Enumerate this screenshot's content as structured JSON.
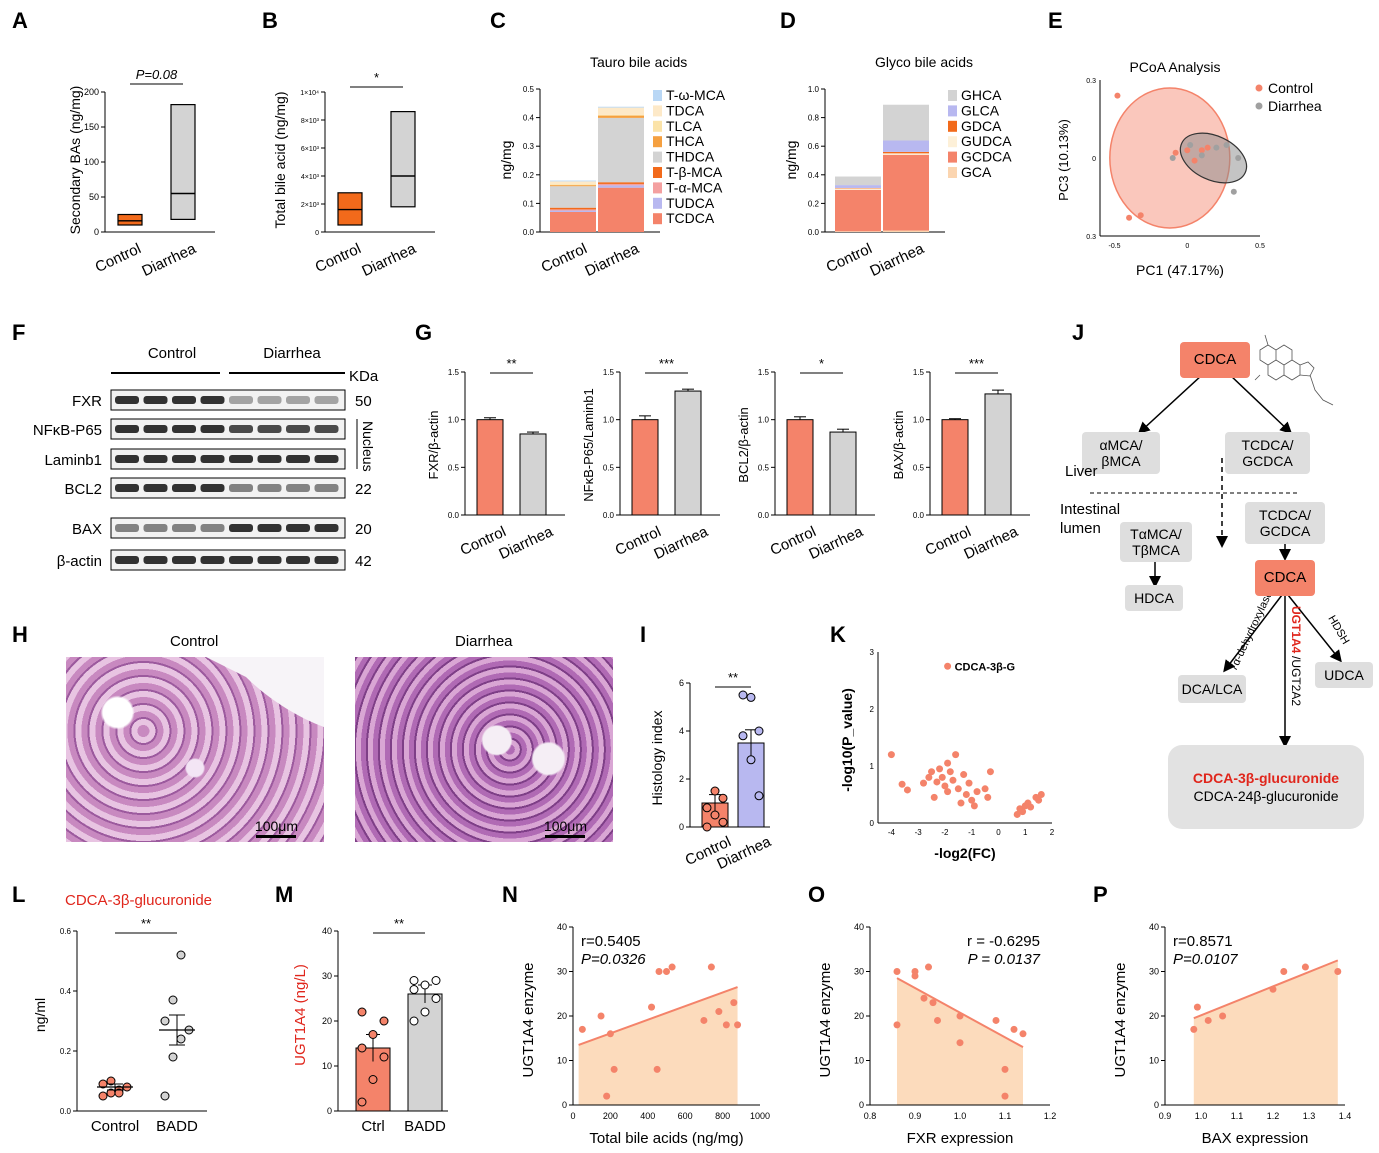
{
  "labels": {
    "A": "A",
    "B": "B",
    "C": "C",
    "D": "D",
    "E": "E",
    "F": "F",
    "G": "G",
    "H": "H",
    "I": "I",
    "J": "J",
    "K": "K",
    "L": "L",
    "M": "M",
    "N": "N",
    "O": "O",
    "P": "P"
  },
  "colors": {
    "salmon": "#f4836a",
    "orange": "#f26a1b",
    "gray": "#d3d3d3",
    "lavender": "#b8b8f0",
    "peach": "#fbd5b0",
    "red": "#e0261c"
  },
  "panelA": {
    "ylabel": "Secondary BAs (ng/mg)",
    "yticks": [
      "0",
      "50",
      "100",
      "150",
      "200"
    ],
    "categories": [
      "Control",
      "Diarrhea"
    ],
    "sig": "P=0.08",
    "chart_data": {
      "type": "box",
      "series": [
        {
          "name": "Control",
          "min": 10,
          "median": 16,
          "max": 25
        },
        {
          "name": "Diarrhea",
          "min": 18,
          "median": 55,
          "max": 182
        }
      ],
      "ylim": [
        0,
        200
      ]
    }
  },
  "panelB": {
    "ylabel": "Total bile acid (ng/mg)",
    "yticks": [
      "0",
      "2×10³",
      "4×10³",
      "6×10³",
      "8×10³",
      "1×10⁴"
    ],
    "categories": [
      "Control",
      "Diarrhea"
    ],
    "sig": "*",
    "chart_data": {
      "type": "box",
      "series": [
        {
          "name": "Control",
          "min": 500,
          "median": 1600,
          "max": 2800
        },
        {
          "name": "Diarrhea",
          "min": 1800,
          "median": 4000,
          "max": 8600
        }
      ],
      "ylim": [
        0,
        10000
      ]
    }
  },
  "panelC": {
    "title": "Tauro bile acids",
    "ylabel": "ng/mg",
    "yticks": [
      "0.0",
      "0.1",
      "0.2",
      "0.3",
      "0.4",
      "0.5"
    ],
    "categories": [
      "Control",
      "Diarrhea"
    ],
    "legend": [
      "T-ω-MCA",
      "TDCA",
      "TLCA",
      "THCA",
      "THDCA",
      "T-β-MCA",
      "T-α-MCA",
      "TUDCA",
      "TCDCA"
    ],
    "chart_data": {
      "type": "bar",
      "stacked": true,
      "categories": [
        "Control",
        "Diarrhea"
      ],
      "series": [
        {
          "name": "TCDCA",
          "values": [
            0.07,
            0.155
          ],
          "color": "#f4836a"
        },
        {
          "name": "TUDCA",
          "values": [
            0.005,
            0.008
          ],
          "color": "#b8b8f0"
        },
        {
          "name": "T-α-MCA",
          "values": [
            0.004,
            0.005
          ],
          "color": "#f4a0a0"
        },
        {
          "name": "T-β-MCA",
          "values": [
            0.006,
            0.006
          ],
          "color": "#f26a1b"
        },
        {
          "name": "THDCA",
          "values": [
            0.075,
            0.225
          ],
          "color": "#d3d3d3"
        },
        {
          "name": "THCA",
          "values": [
            0.004,
            0.008
          ],
          "color": "#f5a040"
        },
        {
          "name": "TLCA",
          "values": [
            0.003,
            0.003
          ],
          "color": "#fbe3a8"
        },
        {
          "name": "TDCA",
          "values": [
            0.01,
            0.025
          ],
          "color": "#fde9c8"
        },
        {
          "name": "T-ω-MCA",
          "values": [
            0.003,
            0.003
          ],
          "color": "#b9d7f5"
        }
      ],
      "ylim": [
        0,
        0.5
      ]
    }
  },
  "panelD": {
    "title": "Glyco bile acids",
    "ylabel": "ng/mg",
    "yticks": [
      "0.0",
      "0.2",
      "0.4",
      "0.6",
      "0.8",
      "1.0"
    ],
    "categories": [
      "Control",
      "Diarrhea"
    ],
    "legend": [
      "GHCA",
      "GLCA",
      "GDCA",
      "GUDCA",
      "GCDCA",
      "GCA"
    ],
    "chart_data": {
      "type": "bar",
      "stacked": true,
      "categories": [
        "Control",
        "Diarrhea"
      ],
      "series": [
        {
          "name": "GCA",
          "values": [
            0.005,
            0.01
          ],
          "color": "#fbd5b0"
        },
        {
          "name": "GCDCA",
          "values": [
            0.29,
            0.53
          ],
          "color": "#f4836a"
        },
        {
          "name": "GUDCA",
          "values": [
            0.01,
            0.01
          ],
          "color": "#fdf0d8"
        },
        {
          "name": "GDCA",
          "values": [
            0.003,
            0.01
          ],
          "color": "#f26a1b"
        },
        {
          "name": "GLCA",
          "values": [
            0.02,
            0.08
          ],
          "color": "#b8b8f0"
        },
        {
          "name": "GHCA",
          "values": [
            0.06,
            0.25
          ],
          "color": "#d3d3d3"
        }
      ],
      "ylim": [
        0,
        1.0
      ]
    }
  },
  "panelE": {
    "title": "PCoA Analysis",
    "xlabel": "PC1 (47.17%)",
    "ylabel": "PC3 (10.13%)",
    "xticks": [
      "-0.5",
      "0",
      "0.5"
    ],
    "yticks": [
      "0.3",
      "0",
      "0.3"
    ],
    "legend": [
      "Control",
      "Diarrhea"
    ],
    "chart_data": {
      "type": "scatter",
      "series": [
        {
          "name": "Control",
          "points": [
            [
              -0.48,
              0.24
            ],
            [
              -0.4,
              -0.23
            ],
            [
              -0.32,
              -0.22
            ],
            [
              -0.08,
              0.02
            ],
            [
              0.0,
              0.03
            ],
            [
              0.05,
              -0.01
            ],
            [
              0.1,
              0.03
            ],
            [
              0.14,
              0.04
            ]
          ]
        },
        {
          "name": "Diarrhea",
          "points": [
            [
              -0.1,
              0.0
            ],
            [
              0.02,
              0.05
            ],
            [
              0.1,
              0.01
            ],
            [
              0.2,
              0.04
            ],
            [
              0.27,
              0.05
            ],
            [
              0.32,
              -0.13
            ],
            [
              0.35,
              0.0
            ]
          ]
        }
      ],
      "xlim": [
        -0.6,
        0.5
      ],
      "ylim": [
        -0.3,
        0.3
      ]
    }
  },
  "panelF": {
    "groups": [
      "Control",
      "Diarrhea"
    ],
    "kda": "KDa",
    "nucleus": "Nucleus",
    "rows": [
      {
        "name": "FXR",
        "kda": "50"
      },
      {
        "name": "NFκB-P65",
        "kda": ""
      },
      {
        "name": "Laminb1",
        "kda": ""
      },
      {
        "name": "BCL2",
        "kda": "22"
      },
      {
        "name": "BAX",
        "kda": "20"
      },
      {
        "name": "β-actin",
        "kda": "42"
      }
    ]
  },
  "panelG": {
    "categories": [
      "Control",
      "Diarrhea"
    ],
    "charts": [
      {
        "ylabel": "FXR/β-actin",
        "yticks": [
          "0.0",
          "0.5",
          "1.0",
          "1.5"
        ],
        "sig": "**",
        "chart_data": {
          "type": "bar",
          "values": [
            1.0,
            0.85
          ],
          "errors": [
            0.02,
            0.02
          ],
          "ylim": [
            0,
            1.5
          ]
        }
      },
      {
        "ylabel": "NFκB-P65/Laminb1",
        "yticks": [
          "0.0",
          "0.5",
          "1.0",
          "1.5"
        ],
        "sig": "***",
        "chart_data": {
          "type": "bar",
          "values": [
            1.0,
            1.3
          ],
          "errors": [
            0.04,
            0.02
          ],
          "ylim": [
            0,
            1.5
          ]
        }
      },
      {
        "ylabel": "BCL2/β-actin",
        "yticks": [
          "0.0",
          "0.5",
          "1.0",
          "1.5"
        ],
        "sig": "*",
        "chart_data": {
          "type": "bar",
          "values": [
            1.0,
            0.87
          ],
          "errors": [
            0.03,
            0.03
          ],
          "ylim": [
            0,
            1.5
          ]
        }
      },
      {
        "ylabel": "BAX/β-actin",
        "yticks": [
          "0.0",
          "0.5",
          "1.0",
          "1.5"
        ],
        "sig": "***",
        "chart_data": {
          "type": "bar",
          "values": [
            1.0,
            1.27
          ],
          "errors": [
            0.01,
            0.04
          ],
          "ylim": [
            0,
            1.5
          ]
        }
      }
    ]
  },
  "panelH": {
    "control": "Control",
    "diarrhea": "Diarrhea",
    "scale": "100μm"
  },
  "panelI": {
    "ylabel": "Histology index",
    "yticks": [
      "0",
      "2",
      "4",
      "6"
    ],
    "categories": [
      "Control",
      "Diarrhea"
    ],
    "sig": "**",
    "chart_data": {
      "type": "bar",
      "values": [
        1.0,
        3.5
      ],
      "errors": [
        0.35,
        0.55
      ],
      "points": [
        [
          0,
          1.5,
          1.2,
          0.8,
          0.5,
          0.2
        ],
        [
          5.5,
          5.4,
          4.0,
          3.8,
          2.8,
          1.3
        ]
      ],
      "ylim": [
        0,
        6
      ]
    }
  },
  "panelJ": {
    "cdca_top": "CDCA",
    "amca": "αMCA/\nβMCA",
    "tcdca_top": "TCDCA/\nGCDCA",
    "liver": "Liver",
    "intestinal": "Intestinal\nlumen",
    "tamca": "TαMCA/\nTβMCA",
    "tcdca_bottom": "TCDCA/\nGCDCA",
    "hdca": "HDCA",
    "cdca_mid": "CDCA",
    "dca": "DCA/LCA",
    "udca": "UDCA",
    "dehyd": "7α-dehydroxylase",
    "hdsh": "HDSH",
    "ugt1a4": "UGT1A4",
    "ugt2a2": "/UGT2A2",
    "product1": "CDCA-3β-glucuronide",
    "product2": "CDCA-24β-glucuronide"
  },
  "panelK": {
    "xlabel": "-log2(FC)",
    "ylabel": "-log10(P_value)",
    "xticks": [
      "-4",
      "-3",
      "-2",
      "-1",
      "0",
      "1",
      "2"
    ],
    "yticks": [
      "0",
      "1",
      "2",
      "3"
    ],
    "highlight": "CDCA-3β-G",
    "chart_data": {
      "type": "scatter",
      "points": [
        [
          -1.9,
          2.75
        ],
        [
          -4.0,
          1.2
        ],
        [
          -3.6,
          0.68
        ],
        [
          -3.4,
          0.58
        ],
        [
          -2.8,
          0.7
        ],
        [
          -2.6,
          0.8
        ],
        [
          -2.5,
          0.9
        ],
        [
          -2.3,
          0.72
        ],
        [
          -2.2,
          0.95
        ],
        [
          -2.1,
          0.8
        ],
        [
          -2.0,
          0.65
        ],
        [
          -1.9,
          1.05
        ],
        [
          -1.8,
          0.9
        ],
        [
          -1.7,
          0.75
        ],
        [
          -1.6,
          1.2
        ],
        [
          -1.5,
          0.6
        ],
        [
          -1.4,
          0.35
        ],
        [
          -1.3,
          0.85
        ],
        [
          -1.2,
          0.5
        ],
        [
          -1.1,
          0.7
        ],
        [
          -1.0,
          0.4
        ],
        [
          -0.9,
          0.3
        ],
        [
          -0.8,
          0.55
        ],
        [
          -0.5,
          0.6
        ],
        [
          -0.4,
          0.45
        ],
        [
          0.7,
          0.15
        ],
        [
          0.8,
          0.25
        ],
        [
          0.9,
          0.2
        ],
        [
          1.0,
          0.3
        ],
        [
          1.1,
          0.35
        ],
        [
          1.2,
          0.28
        ],
        [
          1.4,
          0.45
        ],
        [
          1.5,
          0.4
        ],
        [
          1.6,
          0.5
        ],
        [
          -0.3,
          0.9
        ],
        [
          -2.4,
          0.45
        ],
        [
          -1.9,
          0.55
        ]
      ],
      "xlim": [
        -4.5,
        2
      ],
      "ylim": [
        0,
        3
      ]
    }
  },
  "panelL": {
    "title": "CDCA-3β-glucuronide",
    "ylabel": "ng/ml",
    "yticks": [
      "0.0",
      "0.2",
      "0.4",
      "0.6"
    ],
    "categories": [
      "Control",
      "BADD"
    ],
    "sig": "**",
    "chart_data": {
      "type": "scatter_mean",
      "groups": [
        {
          "name": "Control",
          "values": [
            0.05,
            0.06,
            0.07,
            0.08,
            0.09,
            0.1,
            0.06
          ],
          "mean": 0.08,
          "sem": 0.01
        },
        {
          "name": "BADD",
          "values": [
            0.05,
            0.18,
            0.24,
            0.27,
            0.3,
            0.37,
            0.52
          ],
          "mean": 0.27,
          "sem": 0.05
        }
      ],
      "ylim": [
        0,
        0.6
      ]
    }
  },
  "panelM": {
    "ylabel": "UGT1A4 (ng/L)",
    "yticks": [
      "0",
      "10",
      "20",
      "30",
      "40"
    ],
    "categories": [
      "Ctrl",
      "BADD"
    ],
    "sig": "**",
    "chart_data": {
      "type": "bar",
      "values": [
        14,
        26
      ],
      "errors": [
        3,
        2
      ],
      "points": [
        [
          2,
          7,
          12,
          14,
          17,
          20,
          22
        ],
        [
          20,
          22,
          25,
          27,
          28,
          29,
          29
        ]
      ],
      "ylim": [
        0,
        40
      ]
    }
  },
  "panelN": {
    "r": "r=0.5405",
    "p": "P=0.0326",
    "xlabel": "Total bile acids (ng/mg)",
    "ylabel": "UGT1A4 enzyme",
    "xticks": [
      "0",
      "200",
      "400",
      "600",
      "800",
      "1000"
    ],
    "yticks": [
      "0",
      "10",
      "20",
      "30",
      "40"
    ],
    "chart_data": {
      "type": "scatter",
      "points": [
        [
          50,
          17
        ],
        [
          150,
          20
        ],
        [
          180,
          2
        ],
        [
          200,
          16
        ],
        [
          220,
          8
        ],
        [
          420,
          22
        ],
        [
          450,
          8
        ],
        [
          460,
          30
        ],
        [
          500,
          30
        ],
        [
          530,
          31
        ],
        [
          700,
          19
        ],
        [
          740,
          31
        ],
        [
          780,
          21
        ],
        [
          820,
          18
        ],
        [
          860,
          23
        ],
        [
          880,
          18
        ]
      ],
      "fit": [
        [
          30,
          13.5
        ],
        [
          880,
          26.5
        ]
      ],
      "xlim": [
        0,
        1000
      ],
      "ylim": [
        0,
        40
      ]
    }
  },
  "panelO": {
    "r": "r = -0.6295",
    "p": "P = 0.0137",
    "xlabel": "FXR expression",
    "ylabel": "UGT1A4 enzyme",
    "xticks": [
      "0.8",
      "0.9",
      "1.0",
      "1.1",
      "1.2"
    ],
    "yticks": [
      "0",
      "10",
      "20",
      "30",
      "40"
    ],
    "chart_data": {
      "type": "scatter",
      "points": [
        [
          0.86,
          30
        ],
        [
          0.86,
          18
        ],
        [
          0.9,
          29
        ],
        [
          0.9,
          30
        ],
        [
          0.92,
          24
        ],
        [
          0.93,
          31
        ],
        [
          0.94,
          23
        ],
        [
          0.95,
          19
        ],
        [
          1.0,
          20
        ],
        [
          1.0,
          14
        ],
        [
          1.08,
          19
        ],
        [
          1.1,
          2
        ],
        [
          1.12,
          17
        ],
        [
          1.14,
          16
        ],
        [
          1.1,
          8
        ]
      ],
      "fit": [
        [
          0.86,
          28.5
        ],
        [
          1.14,
          13
        ]
      ],
      "xlim": [
        0.8,
        1.2
      ],
      "ylim": [
        0,
        40
      ]
    }
  },
  "panelP": {
    "r": "r=0.8571",
    "p": "P=0.0107",
    "xlabel": "BAX expression",
    "ylabel": "UGT1A4 enzyme",
    "xticks": [
      "0.9",
      "1.0",
      "1.1",
      "1.2",
      "1.3",
      "1.4"
    ],
    "yticks": [
      "0",
      "10",
      "20",
      "30",
      "40"
    ],
    "chart_data": {
      "type": "scatter",
      "points": [
        [
          0.98,
          17
        ],
        [
          0.99,
          22
        ],
        [
          1.02,
          19
        ],
        [
          1.06,
          20
        ],
        [
          1.2,
          26
        ],
        [
          1.23,
          30
        ],
        [
          1.29,
          31
        ],
        [
          1.38,
          30
        ]
      ],
      "fit": [
        [
          0.98,
          19.5
        ],
        [
          1.38,
          32.5
        ]
      ],
      "xlim": [
        0.9,
        1.4
      ],
      "ylim": [
        0,
        40
      ]
    }
  }
}
